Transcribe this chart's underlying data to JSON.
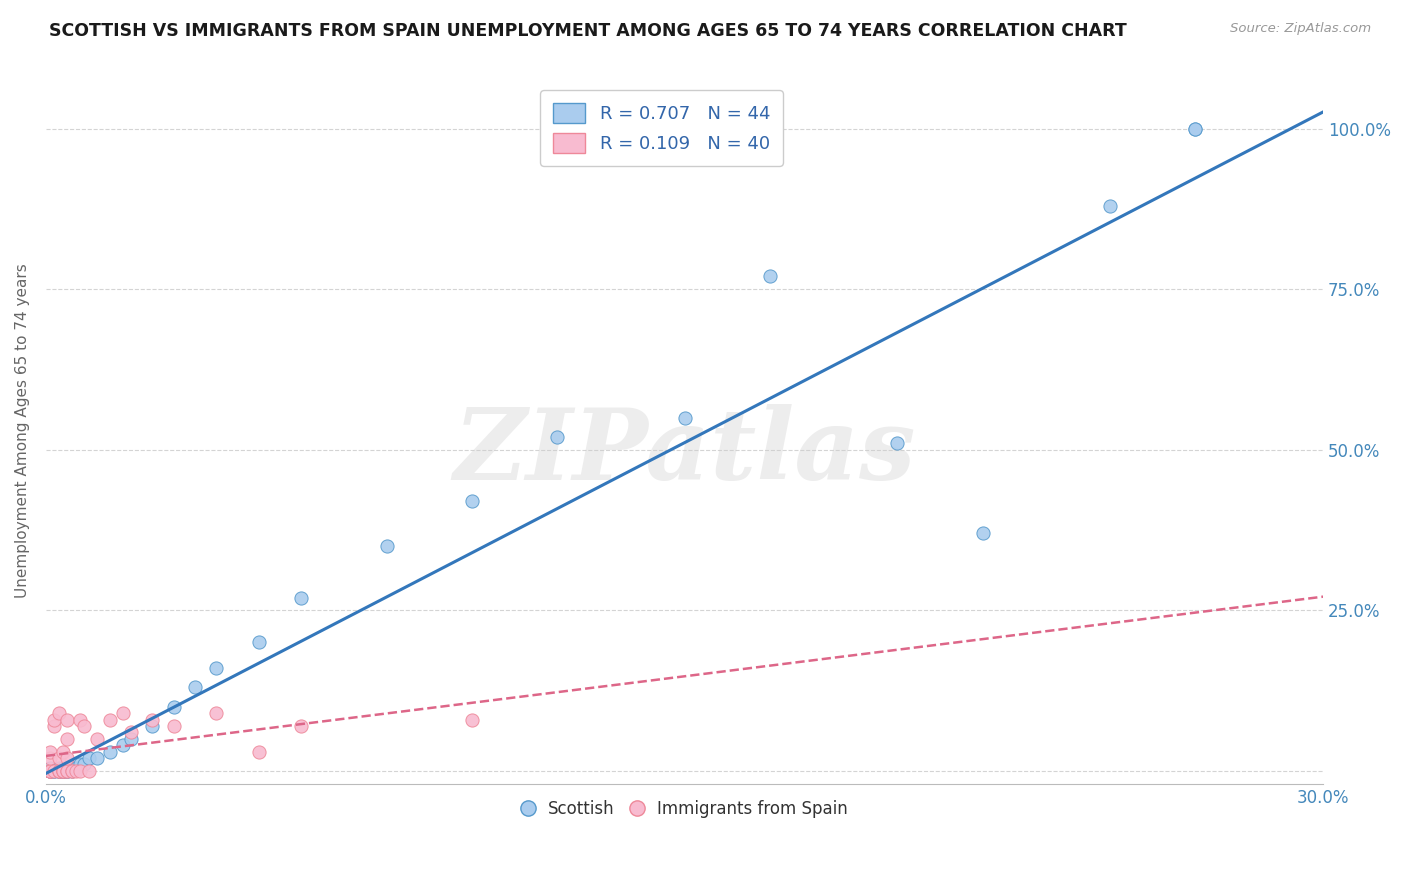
{
  "title": "SCOTTISH VS IMMIGRANTS FROM SPAIN UNEMPLOYMENT AMONG AGES 65 TO 74 YEARS CORRELATION CHART",
  "source": "Source: ZipAtlas.com",
  "ylabel": "Unemployment Among Ages 65 to 74 years",
  "xlim": [
    0.0,
    0.3
  ],
  "ylim": [
    -0.02,
    1.08
  ],
  "xticks": [
    0.0,
    0.3
  ],
  "xtick_labels": [
    "0.0%",
    "30.0%"
  ],
  "yticks": [
    0.0,
    0.25,
    0.5,
    0.75,
    1.0
  ],
  "ytick_labels": [
    "",
    "25.0%",
    "50.0%",
    "75.0%",
    "100.0%"
  ],
  "background_color": "#ffffff",
  "grid_color": "#d0d0d0",
  "watermark": "ZIPatlas",
  "scottish_R": 0.707,
  "scottish_N": 44,
  "spain_R": 0.109,
  "spain_N": 40,
  "scottish_color": "#aaccee",
  "scottish_edge": "#5599cc",
  "scottish_line": "#3377bb",
  "spain_color": "#f8bbd0",
  "spain_edge": "#ee8899",
  "spain_line": "#dd6688",
  "scottish_x": [
    0.001,
    0.001,
    0.001,
    0.001,
    0.002,
    0.002,
    0.003,
    0.003,
    0.003,
    0.003,
    0.004,
    0.004,
    0.004,
    0.004,
    0.005,
    0.005,
    0.005,
    0.005,
    0.006,
    0.006,
    0.007,
    0.008,
    0.009,
    0.01,
    0.012,
    0.015,
    0.018,
    0.02,
    0.025,
    0.03,
    0.035,
    0.04,
    0.05,
    0.06,
    0.08,
    0.1,
    0.12,
    0.15,
    0.17,
    0.2,
    0.22,
    0.25,
    0.27,
    0.27
  ],
  "scottish_y": [
    0.0,
    0.0,
    0.0,
    0.005,
    0.0,
    0.0,
    0.0,
    0.0,
    0.0,
    0.005,
    0.0,
    0.0,
    0.0,
    0.005,
    0.0,
    0.0,
    0.0,
    0.005,
    0.0,
    0.005,
    0.005,
    0.01,
    0.01,
    0.02,
    0.02,
    0.03,
    0.04,
    0.05,
    0.07,
    0.1,
    0.13,
    0.16,
    0.2,
    0.27,
    0.35,
    0.42,
    0.52,
    0.55,
    0.77,
    0.51,
    0.37,
    0.88,
    1.0,
    1.0
  ],
  "spain_x": [
    0.001,
    0.001,
    0.001,
    0.001,
    0.001,
    0.001,
    0.002,
    0.002,
    0.002,
    0.003,
    0.003,
    0.003,
    0.003,
    0.003,
    0.004,
    0.004,
    0.004,
    0.004,
    0.005,
    0.005,
    0.005,
    0.005,
    0.005,
    0.006,
    0.006,
    0.007,
    0.008,
    0.008,
    0.009,
    0.01,
    0.012,
    0.015,
    0.018,
    0.02,
    0.025,
    0.03,
    0.04,
    0.05,
    0.06,
    0.1
  ],
  "spain_y": [
    0.0,
    0.0,
    0.0,
    0.0,
    0.02,
    0.03,
    0.0,
    0.07,
    0.08,
    0.0,
    0.0,
    0.0,
    0.02,
    0.09,
    0.0,
    0.0,
    0.0,
    0.03,
    0.0,
    0.0,
    0.02,
    0.05,
    0.08,
    0.0,
    0.0,
    0.0,
    0.0,
    0.08,
    0.07,
    0.0,
    0.05,
    0.08,
    0.09,
    0.06,
    0.08,
    0.07,
    0.09,
    0.03,
    0.07,
    0.08
  ]
}
